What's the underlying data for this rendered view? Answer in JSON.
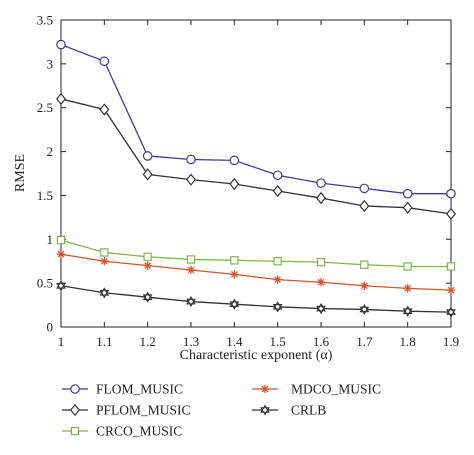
{
  "chart_data": {
    "type": "line",
    "xlabel": "Characteristic exponent (α)",
    "ylabel": "RMSE",
    "xlim": [
      1,
      1.9
    ],
    "ylim": [
      0,
      3.5
    ],
    "x": [
      1,
      1.1,
      1.2,
      1.3,
      1.4,
      1.5,
      1.6,
      1.7,
      1.8,
      1.9
    ],
    "x_tick_labels": [
      "1",
      "1.1",
      "1.2",
      "1.3",
      "1.4",
      "1.5",
      "1.6",
      "1.7",
      "1.8",
      "1.9"
    ],
    "y_ticks": [
      0,
      0.5,
      1,
      1.5,
      2,
      2.5,
      3,
      3.5
    ],
    "y_tick_labels": [
      "0",
      "0.5",
      "1",
      "1.5",
      "2",
      "2.5",
      "3",
      "3.5"
    ],
    "grid": false,
    "legend_placement": "bottom",
    "series": [
      {
        "name": "FLOM_MUSIC",
        "color": "#3b3ba0",
        "marker": "circle",
        "values": [
          3.22,
          3.03,
          1.95,
          1.91,
          1.9,
          1.73,
          1.64,
          1.58,
          1.52,
          1.52
        ]
      },
      {
        "name": "PFLOM_MUSIC",
        "color": "#333333",
        "marker": "diamond",
        "values": [
          2.6,
          2.48,
          1.74,
          1.68,
          1.63,
          1.55,
          1.47,
          1.38,
          1.36,
          1.29
        ]
      },
      {
        "name": "CRCO_MUSIC",
        "color": "#7cb84a",
        "marker": "square",
        "values": [
          0.99,
          0.85,
          0.8,
          0.77,
          0.76,
          0.75,
          0.74,
          0.71,
          0.69,
          0.69
        ]
      },
      {
        "name": "MDCO_MUSIC",
        "color": "#d9532b",
        "marker": "asterisk",
        "values": [
          0.83,
          0.75,
          0.7,
          0.65,
          0.6,
          0.54,
          0.51,
          0.47,
          0.44,
          0.42
        ]
      },
      {
        "name": "CRLB",
        "color": "#333333",
        "marker": "hexagram",
        "values": [
          0.47,
          0.39,
          0.34,
          0.29,
          0.26,
          0.23,
          0.21,
          0.2,
          0.18,
          0.17
        ]
      }
    ]
  }
}
